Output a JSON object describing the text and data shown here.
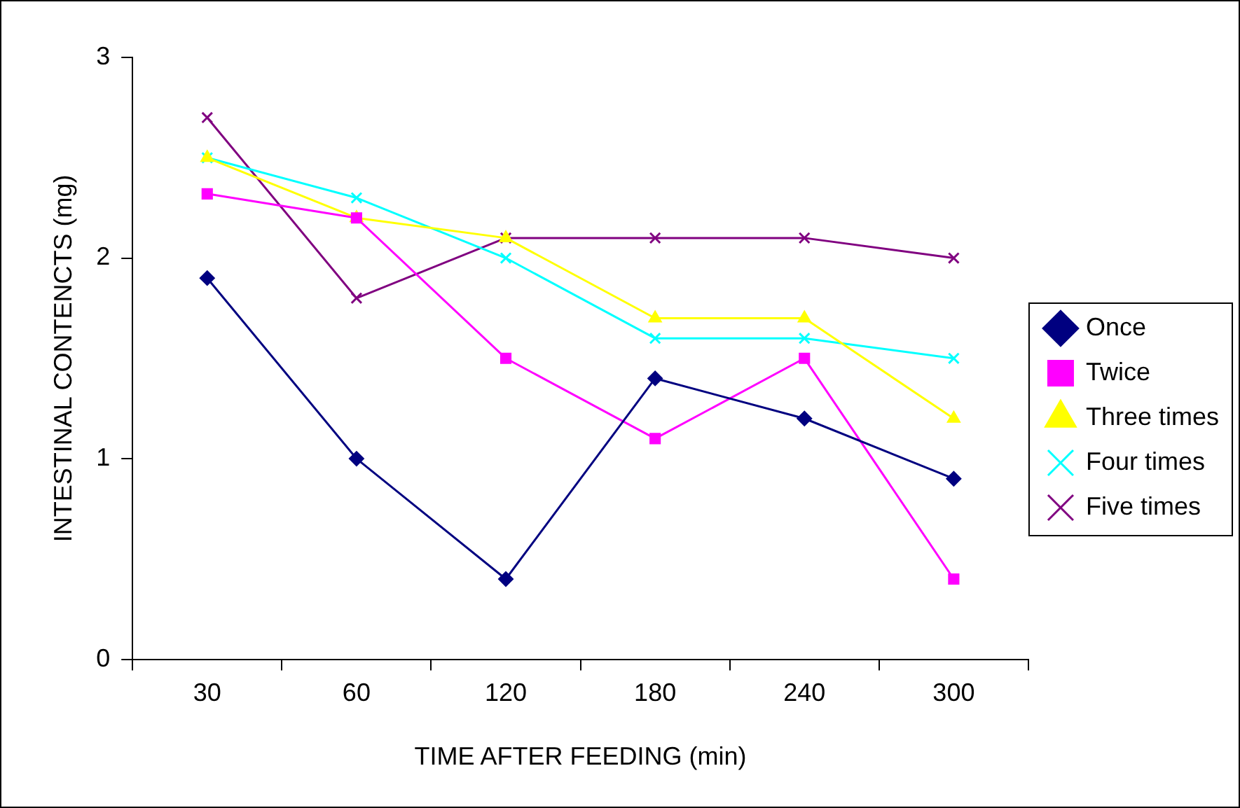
{
  "chart_data": {
    "type": "line",
    "xlabel": "TIME AFTER FEEDING (min)",
    "ylabel": "INTESTINAL CONTENCTS (mg)",
    "categories": [
      "30",
      "60",
      "120",
      "180",
      "240",
      "300"
    ],
    "ylim": [
      0,
      3
    ],
    "yticks": [
      0,
      1,
      2,
      3
    ],
    "grid": false,
    "legend": "right",
    "line_style": "solid",
    "series": [
      {
        "name": "Once",
        "color": "#000080",
        "marker": "diamond",
        "values": [
          1.9,
          1.0,
          0.4,
          1.4,
          1.2,
          0.9
        ]
      },
      {
        "name": "Twice",
        "color": "#ff00ff",
        "marker": "square",
        "values": [
          2.32,
          2.2,
          1.5,
          1.1,
          1.5,
          0.4
        ]
      },
      {
        "name": "Three times",
        "color": "#ffff00",
        "marker": "triangle",
        "values": [
          2.5,
          2.2,
          2.1,
          1.7,
          1.7,
          1.2
        ]
      },
      {
        "name": "Four times",
        "color": "#00ffff",
        "marker": "cross",
        "values": [
          2.5,
          2.3,
          2.0,
          1.6,
          1.6,
          1.5
        ]
      },
      {
        "name": "Five times",
        "color": "#800080",
        "marker": "cross",
        "values": [
          2.7,
          1.8,
          2.1,
          2.1,
          2.1,
          2.0
        ]
      }
    ]
  }
}
